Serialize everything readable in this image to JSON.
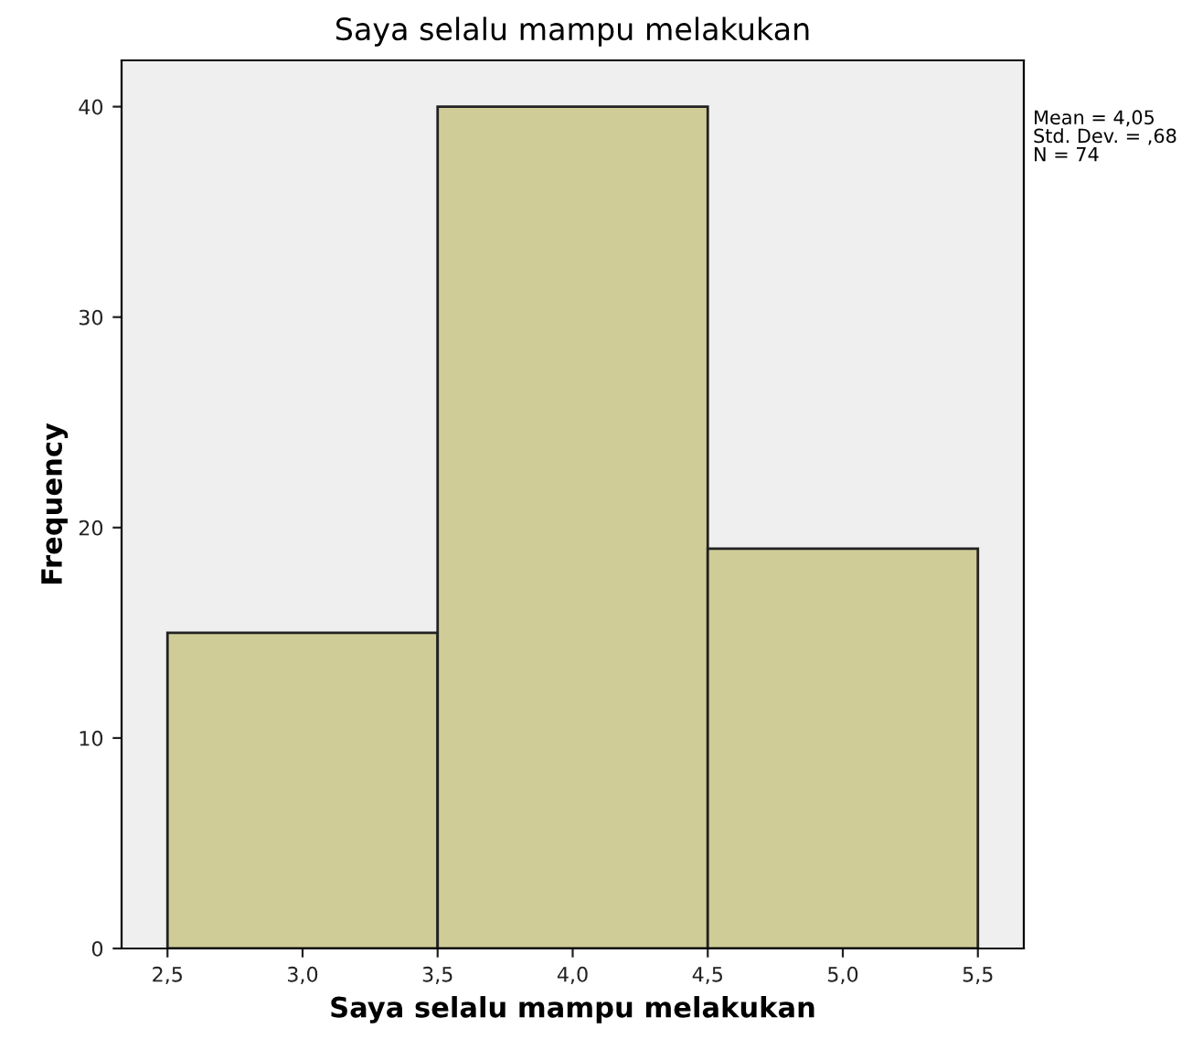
{
  "chart_data": {
    "type": "histogram",
    "title": "Saya selalu mampu melakukan",
    "xlabel": "Saya selalu mampu melakukan",
    "ylabel": "Frequency",
    "bins": [
      2.5,
      3.5,
      4.5,
      5.5
    ],
    "values": [
      15,
      40,
      19
    ],
    "color": "#d0cc98",
    "xlim": [
      2.33,
      5.67
    ],
    "ylim": [
      0,
      42.2
    ],
    "xticks": [
      {
        "value": 2.5,
        "label": "2,5"
      },
      {
        "value": 3.0,
        "label": "3,0"
      },
      {
        "value": 3.5,
        "label": "3,5"
      },
      {
        "value": 4.0,
        "label": "4,0"
      },
      {
        "value": 4.5,
        "label": "4,5"
      },
      {
        "value": 5.0,
        "label": "5,0"
      },
      {
        "value": 5.5,
        "label": "5,5"
      }
    ],
    "yticks": [
      0,
      10,
      20,
      30,
      40
    ],
    "annotations": [
      "Mean = 4,05\nStd. Dev. = ,68\nN = 74"
    ],
    "grid": false,
    "legend": false
  }
}
